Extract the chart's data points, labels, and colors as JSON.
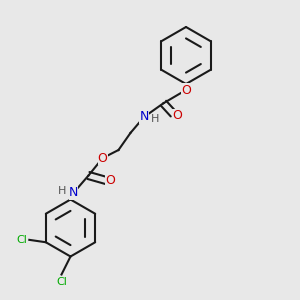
{
  "background_color": "#e8e8e8",
  "bond_color": "#1a1a1a",
  "atom_colors": {
    "N": "#0000cc",
    "O": "#cc0000",
    "Cl": "#00aa00",
    "C": "#1a1a1a",
    "H": "#555555"
  },
  "lw": 1.5,
  "font_size": 9,
  "font_size_small": 8
}
